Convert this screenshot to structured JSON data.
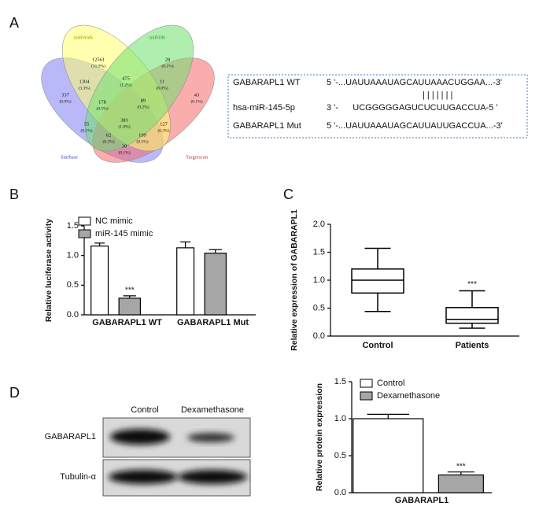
{
  "panel_labels": [
    "A",
    "B",
    "C",
    "D"
  ],
  "venn": {
    "sets": [
      "miRWalk",
      "miRDB",
      "Starbase",
      "Targetscan"
    ],
    "regions": [
      {
        "count": 12561,
        "percent": "(31.9%)"
      },
      {
        "count": 28,
        "percent": "(0.1%)"
      },
      {
        "count": 1304,
        "percent": "(3.3%)"
      },
      {
        "count": 475,
        "percent": "(1.2%)"
      },
      {
        "count": 11,
        "percent": "(0.0%)"
      },
      {
        "count": 337,
        "percent": "(0.9%)"
      },
      {
        "count": 178,
        "percent": "(0.5%)"
      },
      {
        "count": 89,
        "percent": "(0.2%)"
      },
      {
        "count": 43,
        "percent": "(0.1%)"
      },
      {
        "count": 55,
        "percent": "(0.1%)"
      },
      {
        "count": 381,
        "percent": "(1.0%)"
      },
      {
        "count": 127,
        "percent": "(0.3%)"
      },
      {
        "count": 62,
        "percent": "(0.2%)"
      },
      {
        "count": 199,
        "percent": "(0.5%)"
      },
      {
        "count": 30,
        "percent": "(0.1%)"
      }
    ]
  },
  "alignment": {
    "rows": [
      {
        "label": "GABARAPL1 WT",
        "seq": "5 '-...UAUUAAAUAGCAUUAAACUGGAA...-3'"
      },
      {
        "label": "hsa-miR-145-5p",
        "seq": "3 '-      UCGGGGGAGUCUCUUGACCUA-5 '"
      },
      {
        "label": "GABARAPL1 Mut",
        "seq": "5 '-...UAUUAAAUAGCAUUAUUGACCUA...-3'"
      }
    ],
    "bonds": "| | | | | | |"
  },
  "blot": {
    "columns": [
      "Control",
      "Dexamethasone"
    ],
    "rows": [
      "GABARAPL1",
      "Tubulin-α"
    ]
  },
  "chart_data": [
    {
      "type": "bar",
      "ylabel": "Relative luciferase activity",
      "categories": [
        "GABARAPL1 WT",
        "GABARAPL1 Mut"
      ],
      "series": [
        {
          "name": "NC mimic",
          "color": "#ffffff",
          "values": [
            1.16,
            1.13
          ],
          "errors": [
            0.05,
            0.1
          ]
        },
        {
          "name": "miR-145 mimic",
          "color": "#a6a6a6",
          "values": [
            0.28,
            1.04
          ],
          "errors": [
            0.04,
            0.06
          ]
        }
      ],
      "ylim": [
        0,
        1.5
      ],
      "yticks": [
        {
          "value": 0,
          "label": "0.0"
        },
        0.5,
        {
          "value": 1,
          "label": "1.0"
        },
        1.5
      ],
      "annotations": [
        "***"
      ]
    },
    {
      "type": "box",
      "ylabel": "Relative expression of GABARAPL1",
      "categories": [
        "Control",
        "Patients"
      ],
      "color": "#ffffff",
      "boxes": [
        {
          "min": 0.44,
          "q1": 0.77,
          "median": 1.0,
          "q3": 1.2,
          "max": 1.57
        },
        {
          "min": 0.14,
          "q1": 0.23,
          "median": 0.3,
          "q3": 0.51,
          "max": 0.81
        }
      ],
      "ylim": [
        0,
        2
      ],
      "yticks": [
        {
          "value": 0,
          "label": "0.0"
        },
        0.5,
        {
          "value": 1,
          "label": "1.0"
        },
        1.5,
        {
          "value": 2,
          "label": "2.0"
        }
      ],
      "annotations": [
        "***"
      ]
    },
    {
      "type": "bar",
      "ylabel": "Relative protein expression",
      "categories": [
        "GABARAPL1"
      ],
      "series": [
        {
          "name": "Control",
          "color": "#ffffff",
          "values": [
            1.0
          ],
          "errors": [
            0.06
          ]
        },
        {
          "name": "Dexamethasone",
          "color": "#a6a6a6",
          "values": [
            0.24
          ],
          "errors": [
            0.04
          ]
        }
      ],
      "ylim": [
        0,
        1.5
      ],
      "yticks": [
        {
          "value": 0,
          "label": "0.0"
        },
        0.5,
        {
          "value": 1,
          "label": "1.0"
        },
        1.5
      ],
      "annotations": [
        "***"
      ]
    }
  ]
}
